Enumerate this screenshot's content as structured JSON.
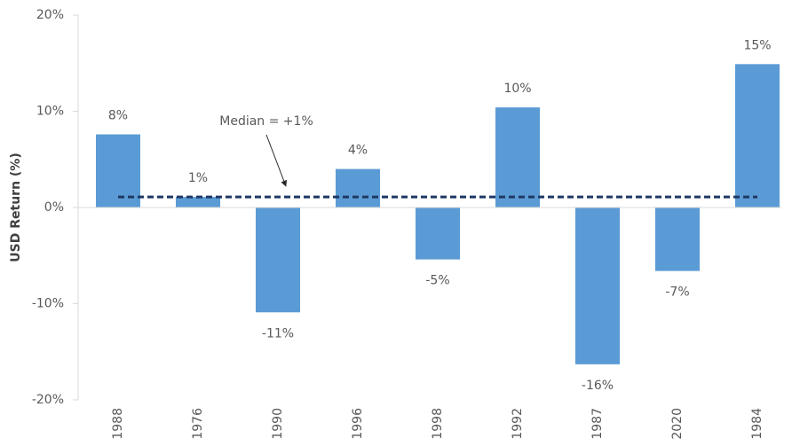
{
  "chart_data": {
    "type": "bar",
    "y_label": "USD Return (%)",
    "categories": [
      "1988",
      "1976",
      "1990",
      "1996",
      "1998",
      "1992",
      "1987",
      "2020",
      "1984"
    ],
    "values": [
      7.6,
      1.1,
      -10.9,
      4.0,
      -5.4,
      10.4,
      -16.3,
      -6.6,
      14.9
    ],
    "value_labels": [
      "8%",
      "1%",
      "-11%",
      "4%",
      "-5%",
      "10%",
      "-16%",
      "-7%",
      "15%"
    ],
    "color": "#5b9bd5",
    "ylim": [
      -20,
      20
    ],
    "yticks": [
      {
        "value": -20,
        "label": "-20%"
      },
      {
        "value": -10,
        "label": "-10%"
      },
      {
        "value": 0,
        "label": "0%"
      },
      {
        "value": 10,
        "label": "10%"
      },
      {
        "value": 20,
        "label": "20%"
      }
    ],
    "median": 1.1,
    "median_color": "#1f3864",
    "annotation": "Median = +1%"
  }
}
